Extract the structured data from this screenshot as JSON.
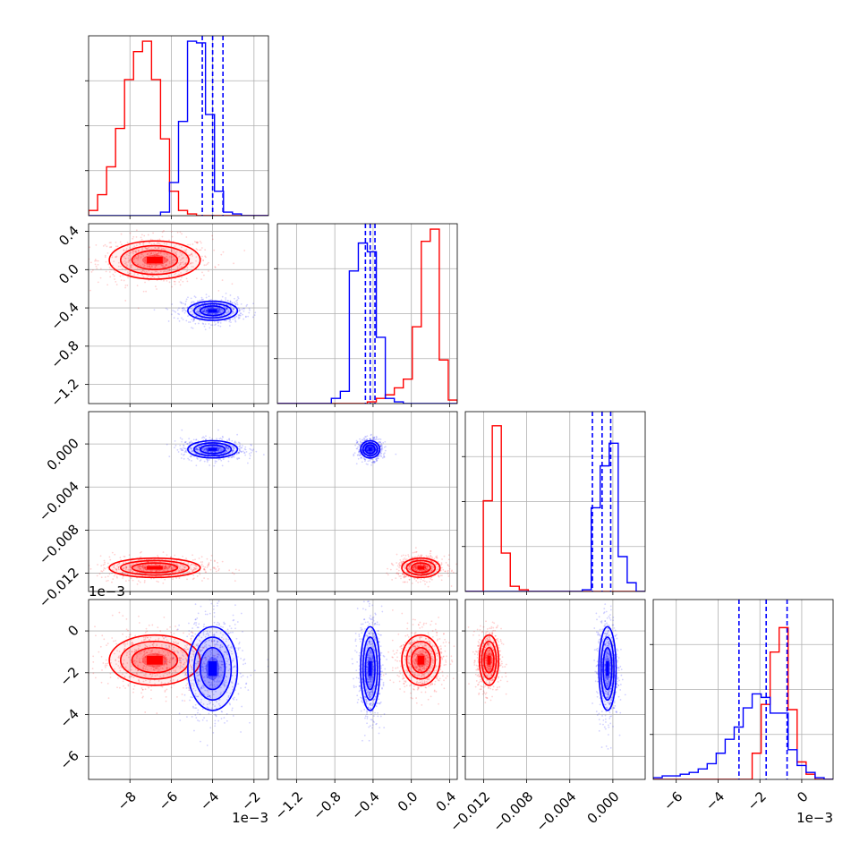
{
  "chart_data": {
    "type": "corner",
    "colors": {
      "series_a": "#ff0000",
      "series_b": "#0000ff",
      "grid": "#b0b0b0"
    },
    "parameters": [
      {
        "key": "p0",
        "range": [
          -0.01,
          -0.0013
        ],
        "ticks": [
          -0.008,
          -0.006,
          -0.004,
          -0.002
        ],
        "tick_labels": [
          "−8",
          "−6",
          "−4",
          "−2"
        ],
        "offset_label": "1e−3"
      },
      {
        "key": "p1",
        "range": [
          -1.4,
          0.48
        ],
        "ticks": [
          -1.2,
          -0.8,
          -0.4,
          0.0,
          0.4
        ],
        "tick_labels": [
          "−1.2",
          "−0.8",
          "−0.4",
          "0.0",
          "0.4"
        ],
        "offset_label": ""
      },
      {
        "key": "p2",
        "range": [
          -0.0137,
          0.003
        ],
        "ticks": [
          -0.012,
          -0.008,
          -0.004,
          0.0
        ],
        "tick_labels": [
          "−0.012",
          "−0.008",
          "−0.004",
          "0.000"
        ],
        "offset_label": ""
      },
      {
        "key": "p3",
        "range": [
          -0.0071,
          0.0015
        ],
        "ticks": [
          -0.006,
          -0.004,
          -0.002,
          0.0
        ],
        "tick_labels": [
          "−6",
          "−4",
          "−2",
          "0"
        ],
        "offset_label": "1e−3"
      }
    ],
    "series": [
      {
        "color": "#ff0000",
        "mean": [
          -0.0068,
          0.1,
          -0.0115,
          -0.0014
        ],
        "sd": [
          0.0011,
          0.1,
          0.00045,
          0.0006
        ],
        "hist": [
          [
            0.03,
            0.12,
            0.28,
            0.5,
            0.78,
            0.94,
            1.0,
            0.78,
            0.44,
            0.14,
            0.03,
            0.01,
            0.0,
            0.0,
            0.0,
            0.0,
            0.0,
            0.0,
            0.0,
            0.0
          ],
          [
            0.0,
            0.0,
            0.0,
            0.0,
            0.0,
            0.0,
            0.0,
            0.0,
            0.0,
            0.0,
            0.01,
            0.03,
            0.05,
            0.09,
            0.14,
            0.44,
            0.93,
            1.0,
            0.25,
            0.02
          ],
          [
            0.0,
            0.0,
            0.52,
            0.95,
            0.22,
            0.03,
            0.01,
            0.0,
            0.0,
            0.0,
            0.0,
            0.0,
            0.0,
            0.0,
            0.0,
            0.0,
            0.0,
            0.0,
            0.0,
            0.0
          ],
          [
            0.0,
            0.0,
            0.0,
            0.0,
            0.0,
            0.0,
            0.0,
            0.0,
            0.0,
            0.0,
            0.0,
            0.15,
            0.43,
            0.73,
            0.87,
            0.4,
            0.1,
            0.03,
            0.0,
            0.0
          ]
        ]
      },
      {
        "color": "#0000ff",
        "mean": [
          -0.004,
          -0.43,
          -0.0005,
          -0.0018
        ],
        "sd": [
          0.0006,
          0.05,
          0.0004,
          0.001
        ],
        "hist": [
          [
            0.0,
            0.0,
            0.0,
            0.0,
            0.0,
            0.0,
            0.0,
            0.0,
            0.02,
            0.19,
            0.54,
            1.0,
            0.99,
            0.58,
            0.14,
            0.02,
            0.01,
            0.0,
            0.0,
            0.0
          ],
          [
            0.0,
            0.0,
            0.0,
            0.0,
            0.0,
            0.0,
            0.03,
            0.07,
            0.76,
            0.92,
            0.87,
            0.38,
            0.03,
            0.01,
            0.0,
            0.0,
            0.0,
            0.0,
            0.0,
            0.0
          ],
          [
            0.0,
            0.0,
            0.0,
            0.0,
            0.0,
            0.0,
            0.0,
            0.0,
            0.0,
            0.0,
            0.0,
            0.0,
            0.0,
            0.01,
            0.48,
            0.72,
            0.85,
            0.2,
            0.05,
            0.0
          ],
          [
            0.01,
            0.02,
            0.02,
            0.03,
            0.04,
            0.06,
            0.09,
            0.15,
            0.23,
            0.3,
            0.41,
            0.49,
            0.47,
            0.38,
            0.38,
            0.17,
            0.08,
            0.04,
            0.01,
            0.0
          ]
        ],
        "quantiles": [
          [
            -0.0045,
            -0.004,
            -0.0035
          ],
          [
            -0.48,
            -0.43,
            -0.38
          ],
          [
            -0.0019,
            -0.001,
            -0.0002
          ],
          [
            -0.003,
            -0.0017,
            -0.0007
          ]
        ]
      }
    ]
  }
}
